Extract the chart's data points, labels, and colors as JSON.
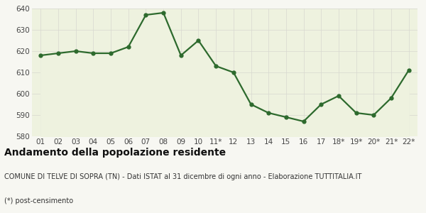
{
  "x_labels": [
    "01",
    "02",
    "03",
    "04",
    "05",
    "06",
    "07",
    "08",
    "09",
    "10",
    "11*",
    "12",
    "13",
    "14",
    "15",
    "16",
    "17",
    "18*",
    "19*",
    "20*",
    "21*",
    "22*"
  ],
  "y_values": [
    618,
    619,
    620,
    619,
    619,
    622,
    637,
    638,
    618,
    625,
    613,
    610,
    595,
    591,
    589,
    587,
    595,
    599,
    591,
    590,
    598,
    611
  ],
  "line_color": "#2d6a2d",
  "fill_color": "#eef2df",
  "marker": "o",
  "marker_size": 3.5,
  "line_width": 1.6,
  "ylim": [
    580,
    640
  ],
  "yticks": [
    580,
    590,
    600,
    610,
    620,
    630,
    640
  ],
  "title": "Andamento della popolazione residente",
  "subtitle": "COMUNE DI TELVE DI SOPRA (TN) - Dati ISTAT al 31 dicembre di ogni anno - Elaborazione TUTTITALIA.IT",
  "footnote": "(*) post-censimento",
  "title_fontsize": 10,
  "subtitle_fontsize": 7.0,
  "footnote_fontsize": 7.0,
  "tick_fontsize": 7.5,
  "bg_color": "#f7f7f2",
  "plot_bg_color": "#eef2df",
  "grid_color": "#d8d8d0"
}
